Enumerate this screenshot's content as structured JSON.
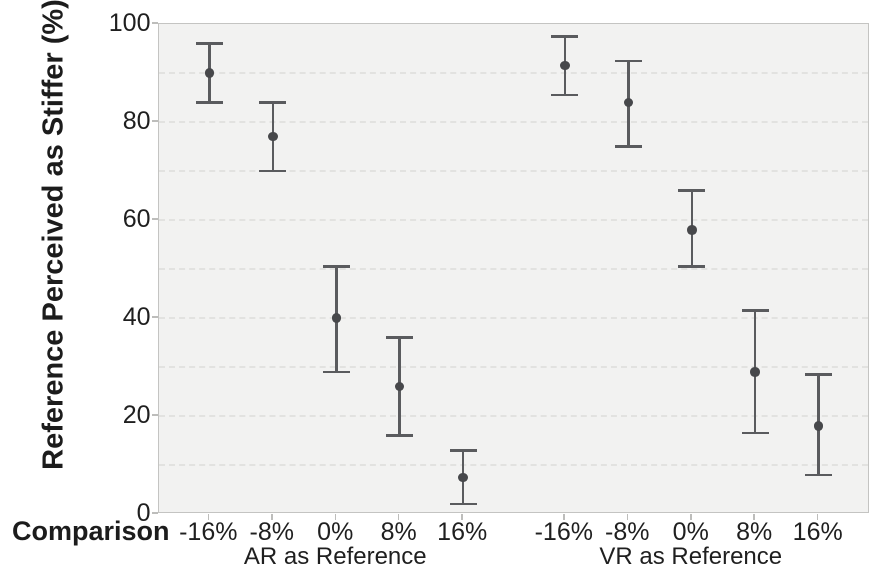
{
  "figure": {
    "y_axis": {
      "title": "Reference Perceived as Stiffer (%)",
      "ticks": [
        0,
        20,
        40,
        60,
        80,
        100
      ],
      "range": [
        0,
        100
      ],
      "gridline_step": 10
    },
    "x_axis": {
      "title": "Comparison",
      "groups": [
        {
          "label": "AR as Reference",
          "categories": [
            "-16%",
            "-8%",
            "0%",
            "8%",
            "16%"
          ]
        },
        {
          "label": "VR as Reference",
          "categories": [
            "-16%",
            "-8%",
            "0%",
            "8%",
            "16%"
          ]
        }
      ]
    }
  },
  "chart_data": {
    "type": "scatter",
    "subtype": "point-estimates-with-error-bars",
    "title": "",
    "xlabel": "Comparison",
    "ylabel": "Reference Perceived as Stiffer (%)",
    "ylim": [
      0,
      100
    ],
    "y_ticks": [
      0,
      20,
      40,
      60,
      80,
      100
    ],
    "grid": "horizontal dashed every 10, on",
    "legend": "none",
    "categories": [
      "-16%",
      "-8%",
      "0%",
      "8%",
      "16%"
    ],
    "series": [
      {
        "name": "AR as Reference",
        "means": [
          90,
          77,
          40,
          26,
          7.5
        ],
        "ci_low": [
          84,
          70,
          29,
          16,
          2
        ],
        "ci_high": [
          96,
          84,
          50.5,
          36,
          13
        ]
      },
      {
        "name": "VR as Reference",
        "means": [
          91.5,
          84,
          58,
          29,
          18
        ],
        "ci_low": [
          85.5,
          75,
          50.5,
          16.5,
          8
        ],
        "ci_high": [
          97.5,
          92.5,
          66,
          41.5,
          28.5
        ]
      }
    ],
    "colors": {
      "marker": "#47484b",
      "error_bar": "#5a5b5e",
      "plot_background": "#f2f2f1",
      "gridline": "#e2e2e0",
      "plot_border": "#c4c4c2",
      "text": "#1f1f1f"
    }
  }
}
